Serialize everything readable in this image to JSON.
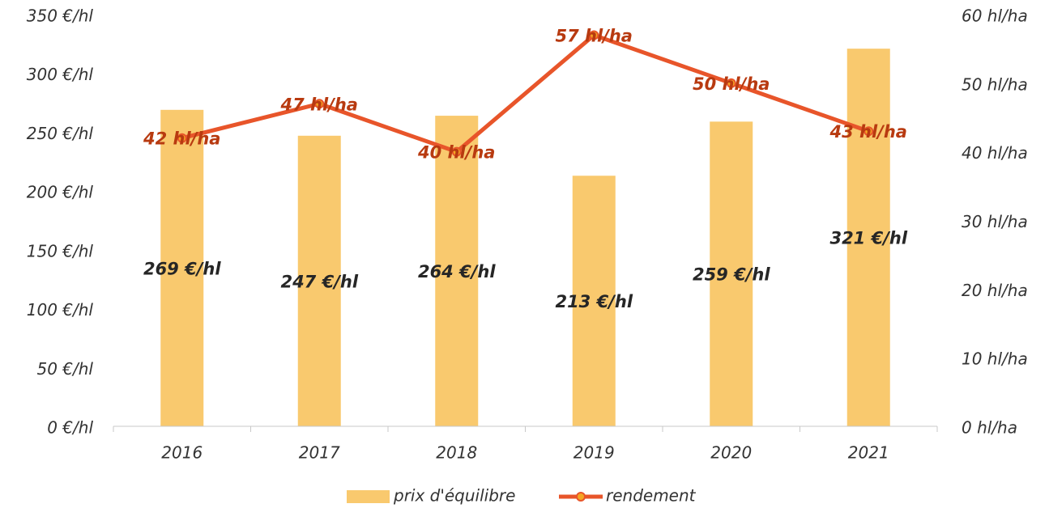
{
  "chart_data": {
    "type": "bar",
    "categories": [
      "2016",
      "2017",
      "2018",
      "2019",
      "2020",
      "2021"
    ],
    "series": [
      {
        "name": "prix d'équilibre",
        "type": "bar",
        "color": "#f9c96e",
        "values": [
          269,
          247,
          264,
          213,
          259,
          321
        ],
        "value_labels": [
          "269 €/hl",
          "247 €/hl",
          "264 €/hl",
          "213 €/hl",
          "259 €/hl",
          "321 €/hl"
        ]
      },
      {
        "name": "rendement",
        "type": "line",
        "axis": "y2",
        "color": "#e8552a",
        "values": [
          42,
          47,
          40,
          57,
          50,
          43
        ],
        "value_labels": [
          "42 hl/ha",
          "47 hl/ha",
          "40 hl/ha",
          "57 hl/ha",
          "50 hl/ha",
          "43 hl/ha"
        ]
      }
    ],
    "ylim": [
      0,
      350
    ],
    "yticks": [
      {
        "value": 0,
        "label": "0 €/hl"
      },
      {
        "value": 50,
        "label": "50 €/hl"
      },
      {
        "value": 100,
        "label": "100 €/hl"
      },
      {
        "value": 150,
        "label": "150 €/hl"
      },
      {
        "value": 200,
        "label": "200 €/hl"
      },
      {
        "value": 250,
        "label": "250 €/hl"
      },
      {
        "value": 300,
        "label": "300 €/hl"
      },
      {
        "value": 350,
        "label": "350 €/hl"
      }
    ],
    "y2lim": [
      0,
      60
    ],
    "y2ticks": [
      {
        "value": 0,
        "label": "0 hl/ha"
      },
      {
        "value": 10,
        "label": "10 hl/ha"
      },
      {
        "value": 20,
        "label": "20 hl/ha"
      },
      {
        "value": 30,
        "label": "30 hl/ha"
      },
      {
        "value": 40,
        "label": "40 hl/ha"
      },
      {
        "value": 50,
        "label": "50 hl/ha"
      },
      {
        "value": 60,
        "label": "60 hl/ha"
      }
    ],
    "legend": "bottom",
    "grid": false
  }
}
